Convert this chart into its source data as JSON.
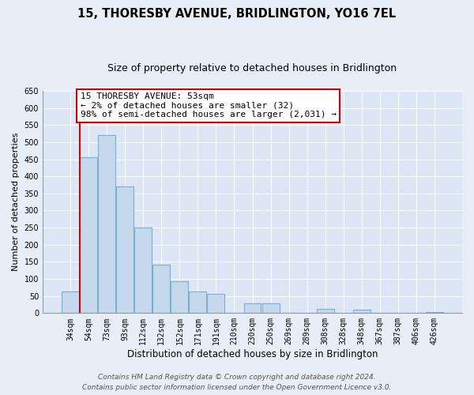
{
  "title": "15, THORESBY AVENUE, BRIDLINGTON, YO16 7EL",
  "subtitle": "Size of property relative to detached houses in Bridlington",
  "xlabel": "Distribution of detached houses by size in Bridlington",
  "ylabel": "Number of detached properties",
  "bar_labels": [
    "34sqm",
    "54sqm",
    "73sqm",
    "93sqm",
    "112sqm",
    "132sqm",
    "152sqm",
    "171sqm",
    "191sqm",
    "210sqm",
    "230sqm",
    "250sqm",
    "269sqm",
    "289sqm",
    "308sqm",
    "328sqm",
    "348sqm",
    "367sqm",
    "387sqm",
    "406sqm",
    "426sqm"
  ],
  "bar_values": [
    62,
    457,
    521,
    370,
    250,
    142,
    94,
    62,
    57,
    0,
    28,
    28,
    0,
    0,
    12,
    0,
    10,
    0,
    0,
    0,
    2
  ],
  "bar_color": "#c6d9ec",
  "bar_edge_color": "#7aafd4",
  "vline_color": "#cc0000",
  "vline_x": 0.5,
  "ylim": [
    0,
    650
  ],
  "yticks": [
    0,
    50,
    100,
    150,
    200,
    250,
    300,
    350,
    400,
    450,
    500,
    550,
    600,
    650
  ],
  "annotation_box_text": "15 THORESBY AVENUE: 53sqm\n← 2% of detached houses are smaller (32)\n98% of semi-detached houses are larger (2,031) →",
  "annotation_box_color": "#ffffff",
  "annotation_box_edge_color": "#cc0000",
  "footer_line1": "Contains HM Land Registry data © Crown copyright and database right 2024.",
  "footer_line2": "Contains public sector information licensed under the Open Government Licence v3.0.",
  "bg_color": "#e8eef8",
  "plot_bg_color": "#dce6f5",
  "grid_color": "#ffffff",
  "title_fontsize": 10.5,
  "subtitle_fontsize": 9,
  "xlabel_fontsize": 8.5,
  "ylabel_fontsize": 8,
  "tick_fontsize": 7,
  "footer_fontsize": 6.5,
  "annotation_fontsize": 8
}
